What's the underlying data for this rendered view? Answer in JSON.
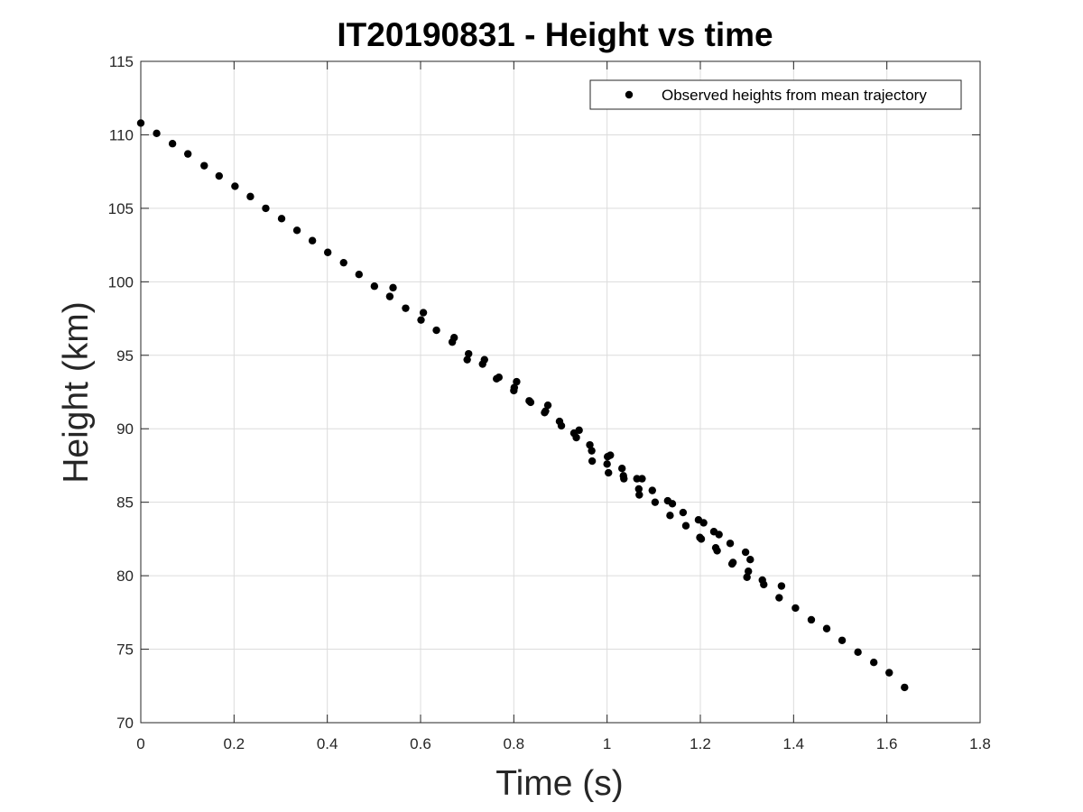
{
  "chart_data": {
    "type": "scatter",
    "title": "IT20190831 - Height vs time",
    "xlabel": "Time (s)",
    "ylabel": "Height (km)",
    "xlim": [
      0,
      1.8
    ],
    "ylim": [
      70,
      115
    ],
    "xticks": [
      0,
      0.2,
      0.4,
      0.6,
      0.8,
      1,
      1.2,
      1.4,
      1.6,
      1.8
    ],
    "xtick_labels": [
      "0",
      "0.2",
      "0.4",
      "0.6",
      "0.8",
      "1",
      "1.2",
      "1.4",
      "1.6",
      "1.8"
    ],
    "yticks": [
      70,
      75,
      80,
      85,
      90,
      95,
      100,
      105,
      110,
      115
    ],
    "ytick_labels": [
      "70",
      "75",
      "80",
      "85",
      "90",
      "95",
      "100",
      "105",
      "110",
      "115"
    ],
    "grid": true,
    "legend_position": "top-right",
    "marker_color": "#000000",
    "series": [
      {
        "name": "Observed heights from mean trajectory",
        "points": [
          [
            0.0,
            110.8
          ],
          [
            0.034,
            110.1
          ],
          [
            0.068,
            109.4
          ],
          [
            0.101,
            108.7
          ],
          [
            0.136,
            107.9
          ],
          [
            0.168,
            107.2
          ],
          [
            0.202,
            106.5
          ],
          [
            0.235,
            105.8
          ],
          [
            0.268,
            105.0
          ],
          [
            0.302,
            104.3
          ],
          [
            0.335,
            103.5
          ],
          [
            0.368,
            102.8
          ],
          [
            0.401,
            102.0
          ],
          [
            0.435,
            101.3
          ],
          [
            0.468,
            100.5
          ],
          [
            0.501,
            99.7
          ],
          [
            0.534,
            99.0
          ],
          [
            0.541,
            99.6
          ],
          [
            0.568,
            98.2
          ],
          [
            0.601,
            97.4
          ],
          [
            0.606,
            97.9
          ],
          [
            0.634,
            96.7
          ],
          [
            0.668,
            95.9
          ],
          [
            0.672,
            96.2
          ],
          [
            0.7,
            94.7
          ],
          [
            0.703,
            95.1
          ],
          [
            0.733,
            94.4
          ],
          [
            0.737,
            94.7
          ],
          [
            0.763,
            93.4
          ],
          [
            0.768,
            93.5
          ],
          [
            0.8,
            92.6
          ],
          [
            0.801,
            92.8
          ],
          [
            0.806,
            93.2
          ],
          [
            0.833,
            91.9
          ],
          [
            0.836,
            91.8
          ],
          [
            0.866,
            91.1
          ],
          [
            0.868,
            91.2
          ],
          [
            0.873,
            91.6
          ],
          [
            0.898,
            90.5
          ],
          [
            0.902,
            90.2
          ],
          [
            0.929,
            89.7
          ],
          [
            0.934,
            89.4
          ],
          [
            0.94,
            89.9
          ],
          [
            0.963,
            88.9
          ],
          [
            0.967,
            88.5
          ],
          [
            0.968,
            87.8
          ],
          [
            1.0,
            87.6
          ],
          [
            1.001,
            88.1
          ],
          [
            1.003,
            87.0
          ],
          [
            1.007,
            88.2
          ],
          [
            1.032,
            87.3
          ],
          [
            1.035,
            86.8
          ],
          [
            1.036,
            86.6
          ],
          [
            1.064,
            86.6
          ],
          [
            1.068,
            85.9
          ],
          [
            1.069,
            85.5
          ],
          [
            1.075,
            86.6
          ],
          [
            1.097,
            85.8
          ],
          [
            1.103,
            85.0
          ],
          [
            1.13,
            85.1
          ],
          [
            1.135,
            84.1
          ],
          [
            1.14,
            84.9
          ],
          [
            1.163,
            84.3
          ],
          [
            1.169,
            83.4
          ],
          [
            1.196,
            83.8
          ],
          [
            1.199,
            82.6
          ],
          [
            1.202,
            82.5
          ],
          [
            1.207,
            83.6
          ],
          [
            1.229,
            83.0
          ],
          [
            1.233,
            81.9
          ],
          [
            1.236,
            81.7
          ],
          [
            1.24,
            82.8
          ],
          [
            1.264,
            82.2
          ],
          [
            1.268,
            80.8
          ],
          [
            1.27,
            80.9
          ],
          [
            1.297,
            81.6
          ],
          [
            1.3,
            79.9
          ],
          [
            1.303,
            80.3
          ],
          [
            1.307,
            81.1
          ],
          [
            1.333,
            79.7
          ],
          [
            1.336,
            79.4
          ],
          [
            1.369,
            78.5
          ],
          [
            1.374,
            79.3
          ],
          [
            1.404,
            77.8
          ],
          [
            1.438,
            77.0
          ],
          [
            1.471,
            76.4
          ],
          [
            1.504,
            75.6
          ],
          [
            1.538,
            74.8
          ],
          [
            1.572,
            74.1
          ],
          [
            1.605,
            73.4
          ],
          [
            1.638,
            72.4
          ]
        ]
      }
    ]
  }
}
